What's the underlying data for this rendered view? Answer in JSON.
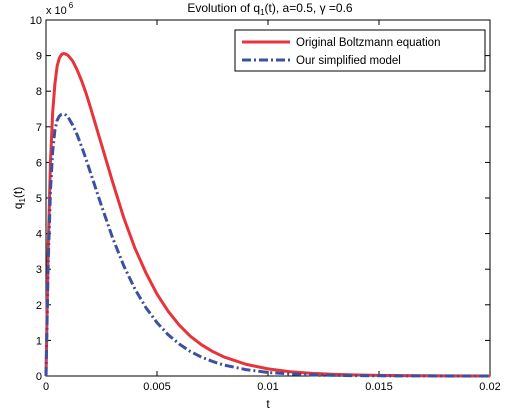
{
  "chart_data": {
    "type": "line",
    "title_parts": [
      "Evolution of q",
      "1",
      "(t), a=0.5, γ =0.6"
    ],
    "xlabel": "t",
    "ylabel_parts": [
      "q",
      "1",
      "(t)"
    ],
    "y_scale_label": "x 10",
    "y_scale_exponent": "6",
    "xlim": [
      0,
      0.02
    ],
    "ylim": [
      0,
      10
    ],
    "x_ticks": [
      "0",
      "0.005",
      "0.01",
      "0.015",
      "0.02"
    ],
    "y_ticks": [
      "0",
      "1",
      "2",
      "3",
      "4",
      "5",
      "6",
      "7",
      "8",
      "9",
      "10"
    ],
    "grid": false,
    "legend_position": "top-right",
    "series": [
      {
        "name": "Original Boltzmann equation",
        "color": "#e8333a",
        "style": "solid",
        "points": [
          [
            0,
            0
          ],
          [
            0.0001,
            3.6
          ],
          [
            0.0002,
            6.0
          ],
          [
            0.0003,
            7.4
          ],
          [
            0.0004,
            8.2
          ],
          [
            0.0005,
            8.7
          ],
          [
            0.0006,
            8.93
          ],
          [
            0.0007,
            9.03
          ],
          [
            0.0008,
            9.06
          ],
          [
            0.0009,
            9.04
          ],
          [
            0.001,
            9.0
          ],
          [
            0.0012,
            8.85
          ],
          [
            0.0014,
            8.6
          ],
          [
            0.0016,
            8.3
          ],
          [
            0.0018,
            7.95
          ],
          [
            0.002,
            7.55
          ],
          [
            0.0025,
            6.5
          ],
          [
            0.003,
            5.45
          ],
          [
            0.0035,
            4.45
          ],
          [
            0.004,
            3.6
          ],
          [
            0.0045,
            2.9
          ],
          [
            0.005,
            2.3
          ],
          [
            0.0055,
            1.82
          ],
          [
            0.006,
            1.43
          ],
          [
            0.0065,
            1.12
          ],
          [
            0.007,
            0.88
          ],
          [
            0.0075,
            0.69
          ],
          [
            0.008,
            0.54
          ],
          [
            0.009,
            0.33
          ],
          [
            0.01,
            0.2
          ],
          [
            0.011,
            0.12
          ],
          [
            0.012,
            0.075
          ],
          [
            0.013,
            0.045
          ],
          [
            0.014,
            0.028
          ],
          [
            0.015,
            0.017
          ],
          [
            0.016,
            0.01
          ],
          [
            0.018,
            0.004
          ],
          [
            0.02,
            0.0015
          ]
        ]
      },
      {
        "name": "Our simplified model",
        "color": "#3a50a0",
        "style": "dash-dot",
        "points": [
          [
            0,
            0
          ],
          [
            0.0001,
            3.2
          ],
          [
            0.0002,
            5.2
          ],
          [
            0.0003,
            6.3
          ],
          [
            0.0004,
            6.9
          ],
          [
            0.0005,
            7.18
          ],
          [
            0.0006,
            7.3
          ],
          [
            0.0007,
            7.35
          ],
          [
            0.0008,
            7.36
          ],
          [
            0.0009,
            7.33
          ],
          [
            0.001,
            7.27
          ],
          [
            0.0012,
            7.05
          ],
          [
            0.0014,
            6.78
          ],
          [
            0.0016,
            6.45
          ],
          [
            0.0018,
            6.1
          ],
          [
            0.002,
            5.72
          ],
          [
            0.0025,
            4.78
          ],
          [
            0.003,
            3.88
          ],
          [
            0.0035,
            3.1
          ],
          [
            0.004,
            2.45
          ],
          [
            0.0045,
            1.92
          ],
          [
            0.005,
            1.5
          ],
          [
            0.0055,
            1.16
          ],
          [
            0.006,
            0.9
          ],
          [
            0.0065,
            0.69
          ],
          [
            0.007,
            0.53
          ],
          [
            0.0075,
            0.41
          ],
          [
            0.008,
            0.31
          ],
          [
            0.009,
            0.18
          ],
          [
            0.01,
            0.1
          ],
          [
            0.011,
            0.057
          ],
          [
            0.012,
            0.032
          ],
          [
            0.013,
            0.018
          ],
          [
            0.014,
            0.01
          ],
          [
            0.015,
            0.006
          ],
          [
            0.016,
            0.003
          ],
          [
            0.018,
            0.001
          ],
          [
            0.02,
            0.0003
          ]
        ]
      }
    ]
  }
}
